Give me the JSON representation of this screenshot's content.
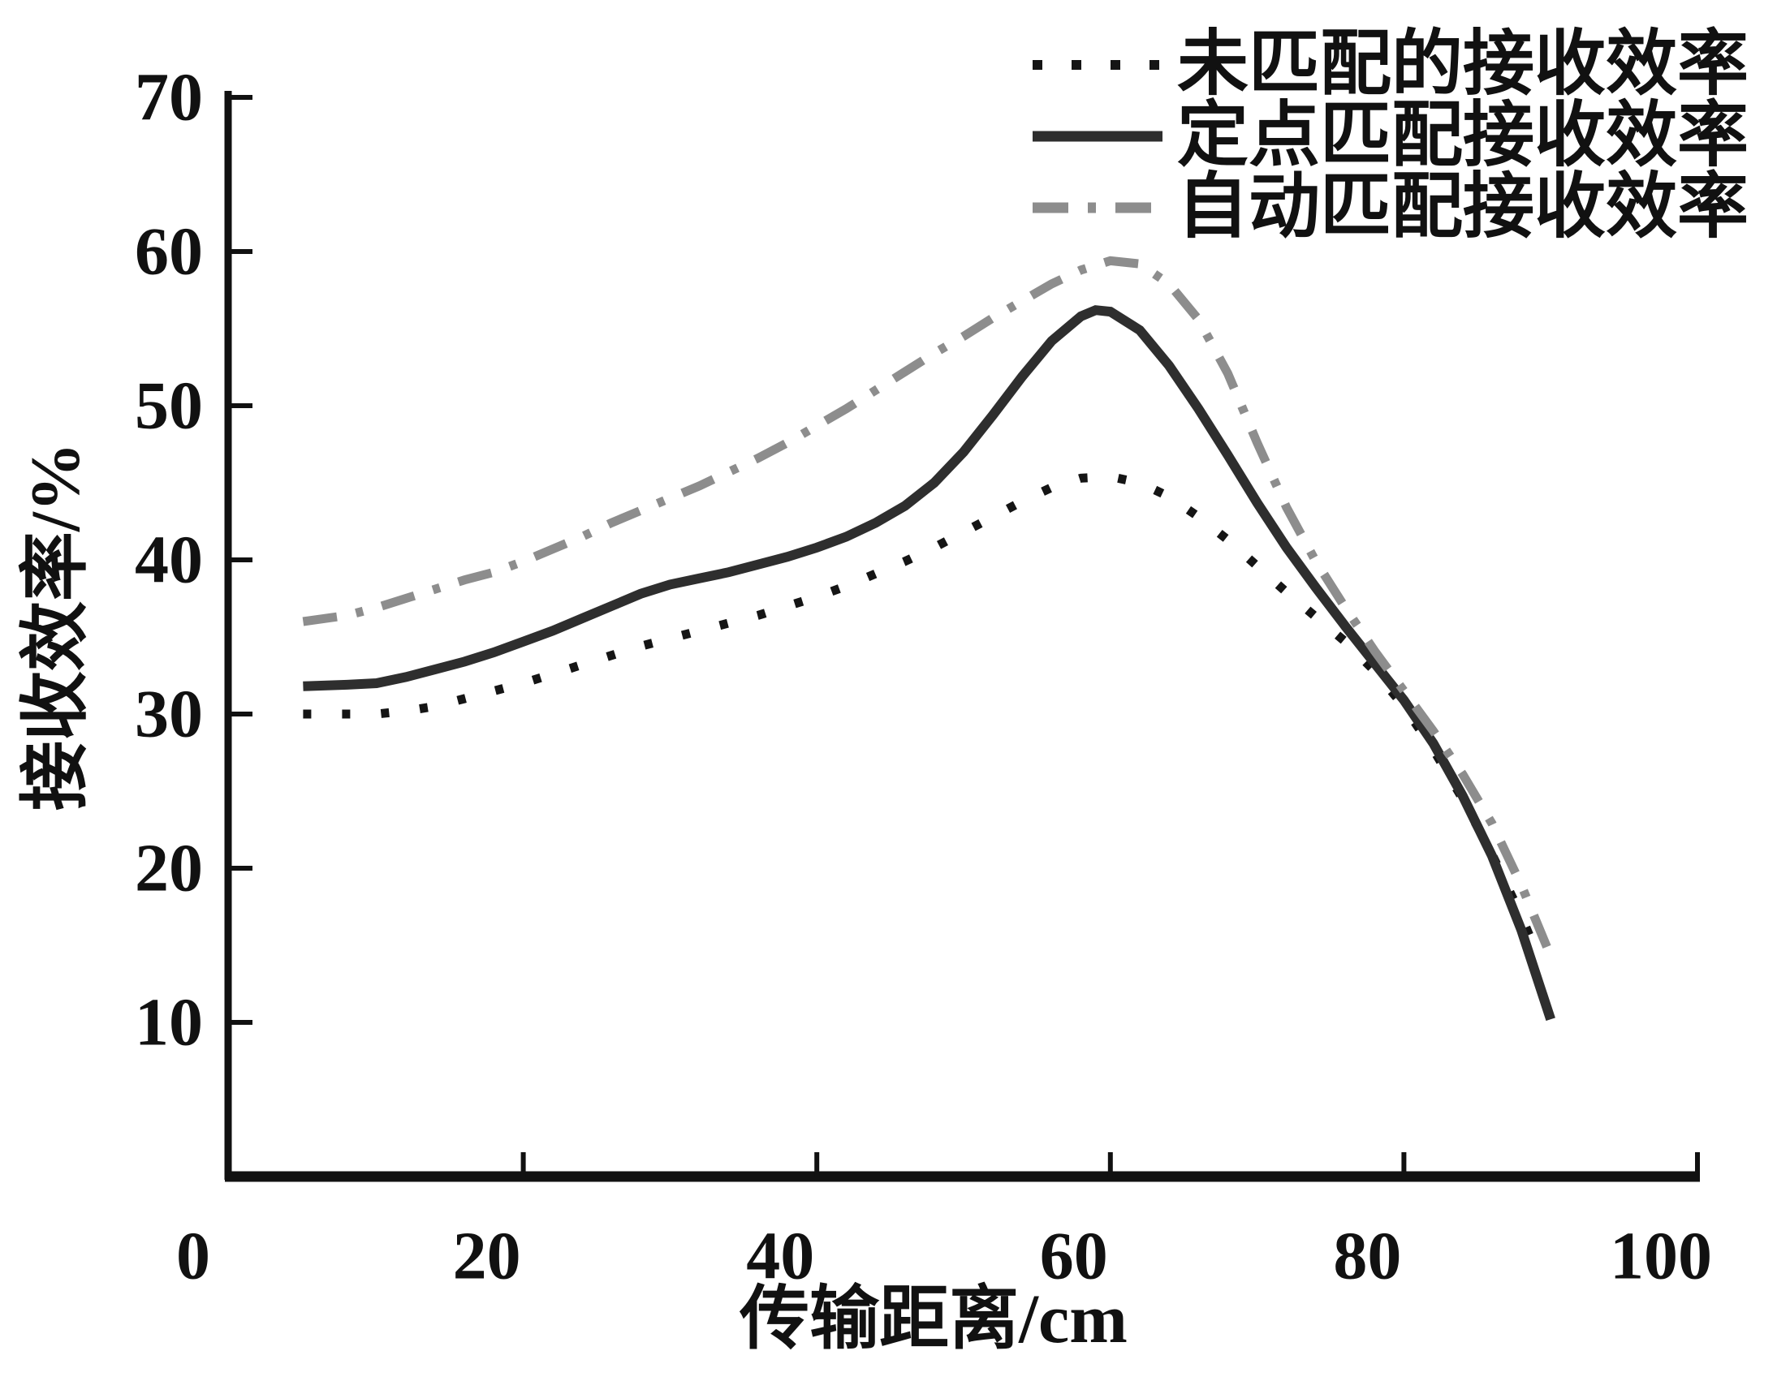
{
  "chart_data": {
    "type": "line",
    "title": "",
    "xlabel": "传输距离/cm",
    "ylabel": "接收效率/%",
    "xlim": [
      0,
      100
    ],
    "ylim": [
      0,
      70
    ],
    "xticks": [
      0,
      20,
      40,
      60,
      80,
      100
    ],
    "yticks": [
      10,
      20,
      30,
      40,
      50,
      60,
      70
    ],
    "grid": false,
    "legend_position": "top-right",
    "axis_color": "#111111",
    "series": [
      {
        "name": "未匹配的接收效率",
        "style": "dotted",
        "color": "#151515",
        "points": [
          [
            5,
            30.0
          ],
          [
            8,
            30.0
          ],
          [
            10,
            30.0
          ],
          [
            12,
            30.2
          ],
          [
            14,
            30.5
          ],
          [
            16,
            31.0
          ],
          [
            18,
            31.5
          ],
          [
            20,
            32.0
          ],
          [
            22,
            32.6
          ],
          [
            24,
            33.2
          ],
          [
            26,
            33.8
          ],
          [
            28,
            34.4
          ],
          [
            30,
            34.9
          ],
          [
            32,
            35.4
          ],
          [
            34,
            35.9
          ],
          [
            36,
            36.4
          ],
          [
            38,
            37.0
          ],
          [
            40,
            37.6
          ],
          [
            42,
            38.3
          ],
          [
            44,
            39.1
          ],
          [
            46,
            39.9
          ],
          [
            48,
            40.8
          ],
          [
            50,
            41.8
          ],
          [
            52,
            42.8
          ],
          [
            54,
            43.8
          ],
          [
            56,
            44.7
          ],
          [
            58,
            45.3
          ],
          [
            60,
            45.4
          ],
          [
            62,
            45.0
          ],
          [
            64,
            44.1
          ],
          [
            66,
            42.8
          ],
          [
            68,
            41.3
          ],
          [
            70,
            39.6
          ],
          [
            72,
            37.9
          ],
          [
            74,
            36.3
          ],
          [
            76,
            34.7
          ],
          [
            78,
            32.8
          ],
          [
            80,
            30.5
          ],
          [
            82,
            27.7
          ],
          [
            84,
            24.5
          ],
          [
            86,
            20.9
          ],
          [
            88,
            16.9
          ],
          [
            89,
            14.6
          ]
        ]
      },
      {
        "name": "定点匹配接收效率",
        "style": "solid",
        "color": "#2e2e2e",
        "points": [
          [
            5,
            31.8
          ],
          [
            8,
            31.9
          ],
          [
            10,
            32.0
          ],
          [
            12,
            32.4
          ],
          [
            14,
            32.9
          ],
          [
            16,
            33.4
          ],
          [
            18,
            34.0
          ],
          [
            20,
            34.7
          ],
          [
            22,
            35.4
          ],
          [
            24,
            36.2
          ],
          [
            26,
            37.0
          ],
          [
            28,
            37.8
          ],
          [
            30,
            38.4
          ],
          [
            32,
            38.8
          ],
          [
            34,
            39.2
          ],
          [
            36,
            39.7
          ],
          [
            38,
            40.2
          ],
          [
            40,
            40.8
          ],
          [
            42,
            41.5
          ],
          [
            44,
            42.4
          ],
          [
            46,
            43.5
          ],
          [
            48,
            45.0
          ],
          [
            50,
            47.0
          ],
          [
            52,
            49.4
          ],
          [
            54,
            51.9
          ],
          [
            56,
            54.2
          ],
          [
            58,
            55.8
          ],
          [
            59,
            56.2
          ],
          [
            60,
            56.1
          ],
          [
            62,
            54.9
          ],
          [
            64,
            52.6
          ],
          [
            66,
            49.8
          ],
          [
            68,
            46.8
          ],
          [
            70,
            43.7
          ],
          [
            72,
            40.8
          ],
          [
            74,
            38.2
          ],
          [
            76,
            35.7
          ],
          [
            78,
            33.3
          ],
          [
            80,
            30.9
          ],
          [
            82,
            28.1
          ],
          [
            84,
            24.7
          ],
          [
            86,
            20.8
          ],
          [
            88,
            16.0
          ],
          [
            90,
            10.2
          ]
        ]
      },
      {
        "name": "自动匹配接收效率",
        "style": "dashdot",
        "color": "#8d8d8d",
        "points": [
          [
            5,
            36.0
          ],
          [
            8,
            36.4
          ],
          [
            10,
            36.9
          ],
          [
            12,
            37.5
          ],
          [
            14,
            38.1
          ],
          [
            16,
            38.7
          ],
          [
            18,
            39.2
          ],
          [
            20,
            39.9
          ],
          [
            22,
            40.7
          ],
          [
            24,
            41.5
          ],
          [
            26,
            42.4
          ],
          [
            28,
            43.2
          ],
          [
            30,
            44.0
          ],
          [
            32,
            44.8
          ],
          [
            34,
            45.7
          ],
          [
            36,
            46.6
          ],
          [
            38,
            47.6
          ],
          [
            40,
            48.7
          ],
          [
            42,
            49.8
          ],
          [
            44,
            51.0
          ],
          [
            46,
            52.2
          ],
          [
            48,
            53.4
          ],
          [
            50,
            54.5
          ],
          [
            52,
            55.7
          ],
          [
            54,
            56.8
          ],
          [
            56,
            57.9
          ],
          [
            58,
            58.8
          ],
          [
            60,
            59.4
          ],
          [
            62,
            59.2
          ],
          [
            64,
            57.9
          ],
          [
            66,
            55.6
          ],
          [
            68,
            52.1
          ],
          [
            70,
            47.6
          ],
          [
            72,
            43.4
          ],
          [
            74,
            39.9
          ],
          [
            76,
            36.9
          ],
          [
            78,
            34.1
          ],
          [
            80,
            31.5
          ],
          [
            82,
            28.9
          ],
          [
            84,
            26.1
          ],
          [
            86,
            22.9
          ],
          [
            88,
            18.9
          ],
          [
            90,
            14.3
          ]
        ]
      }
    ]
  }
}
